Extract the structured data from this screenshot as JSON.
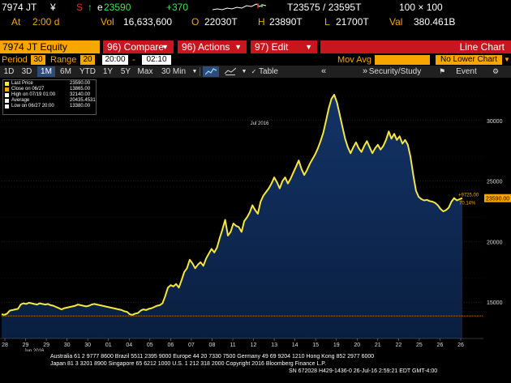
{
  "quote": {
    "ticker": "7974 JT",
    "currency_symbol": "¥",
    "flag": "S",
    "up_arrow": "↑",
    "trade_prefix": "e",
    "last_price": "23590",
    "change": "+370",
    "bid_ask": "T23575 / 23595T",
    "size": "100 × 100",
    "time_label": "At",
    "time": "2:00 d",
    "vol_label": "Vol",
    "volume": "16,633,600",
    "open_label": "O",
    "open": "22030T",
    "high_label": "H",
    "high": "23890T",
    "low_label": "L",
    "low": "21700T",
    "val_label": "Val",
    "value": "380.461B"
  },
  "menu": {
    "security": "7974 JT Equity",
    "compare": "96) Compare",
    "actions": "96) Actions",
    "edit": "97) Edit",
    "title": "Line Chart"
  },
  "period_bar": {
    "period_label": "Period",
    "period_value": "30",
    "range_label": "Range",
    "range_value": "20",
    "range_start": "20:00",
    "range_dash": "-",
    "range_end": "02:10",
    "mov_avg_label": "Mov Avg",
    "lower_chart": "No Lower Chart"
  },
  "toolbar": {
    "buttons": [
      "1D",
      "3D",
      "1M",
      "6M",
      "YTD",
      "1Y",
      "5Y",
      "Max",
      "30 Min"
    ],
    "selected": "1M",
    "table_label": "Table",
    "security_study": "Security/Study",
    "event_label": "Event"
  },
  "legend": {
    "items": [
      {
        "label": "Last Price",
        "value": "23590.00",
        "color": "#f5e642"
      },
      {
        "label": "Close on 06/27",
        "value": "13865.00",
        "color": "#f7a600"
      },
      {
        "label": "High on 07/19 01:00",
        "value": "32140.00",
        "color": "#ffffff"
      },
      {
        "label": "Average",
        "value": "20435.4531",
        "color": "#ffffff"
      },
      {
        "label": "Low on 06/27 20:00",
        "value": "13380.00",
        "color": "#ffffff"
      }
    ]
  },
  "chart_data": {
    "type": "area",
    "y_ticks": [
      "30000",
      "25000",
      "20000",
      "15000"
    ],
    "ylim": [
      12000,
      33000
    ],
    "x_ticks": [
      "28",
      "29",
      "29",
      "30",
      "30",
      "01",
      "04",
      "05",
      "06",
      "07",
      "08",
      "11",
      "12",
      "13",
      "14",
      "15",
      "19",
      "20",
      "21",
      "22",
      "25",
      "26",
      "26"
    ],
    "month_labels": [
      "Jun 2016",
      "Jul 2016"
    ],
    "last_price_tag": "23590.00",
    "annotation_change": "+9725.00",
    "annotation_pct": "70.14%",
    "reference_line": 13865,
    "colors": {
      "line": "#f5e642",
      "fill": "#0f2c58",
      "ref_line": "#f7a600",
      "tag": "#f7a600"
    },
    "series": [
      {
        "values": [
          14000,
          13950,
          14050,
          14300,
          14350,
          14400,
          14450,
          14800,
          14900,
          14850,
          14950,
          14900,
          14850,
          14800,
          14900,
          14850,
          14800,
          14850,
          14750,
          14700,
          14600,
          14500,
          14400,
          14500,
          14550,
          14600,
          14650,
          14700,
          14800,
          14750,
          14700,
          14650,
          14700,
          14800,
          14850,
          14800,
          14750,
          14700,
          14650,
          14600,
          14550,
          14500,
          14450,
          14400,
          14350,
          14250,
          14200,
          14000,
          13950,
          14050,
          14100,
          14300,
          14400,
          14350,
          14450,
          14500,
          14600,
          14700,
          14750,
          14900,
          15500,
          16200,
          16400,
          16300,
          16500,
          16200,
          16800,
          17500,
          17800,
          18500,
          18200,
          17800,
          18100,
          18300,
          18000,
          18600,
          19000,
          19400,
          19100,
          19500,
          20300,
          21000,
          21800,
          20500,
          20800,
          21500,
          21300,
          21200,
          20800,
          21700,
          22000,
          22400,
          23000,
          22600,
          22300,
          23300,
          23800,
          24100,
          24400,
          24800,
          25300,
          24900,
          24400,
          25000,
          25300,
          24800,
          25200,
          25700,
          26200,
          26700,
          26000,
          25500,
          25900,
          26400,
          26800,
          27200,
          27700,
          28300,
          29000,
          30000,
          31000,
          31800,
          32140,
          31500,
          30500,
          29500,
          28500,
          27800,
          27300,
          27800,
          28200,
          27700,
          27400,
          27900,
          28300,
          27800,
          27300,
          27700,
          28000,
          27600,
          27900,
          28400,
          29100,
          28500,
          28900,
          28400,
          28700,
          28100,
          28400,
          28000,
          27000,
          25500,
          24200,
          23700,
          23500,
          23400,
          23450,
          23350,
          23300,
          23200,
          23000,
          22700,
          22500,
          22600,
          22800,
          23300,
          23600,
          23400,
          23500,
          23590
        ]
      }
    ]
  },
  "footer": {
    "line1": "Australia 61 2 9777 8600 Brazil 5511 2395 9000 Europe 44 20 7330 7500 Germany 49 69 9204 1210 Hong Kong 852 2977 6000",
    "line2": "Japan 81 3 3201 8900        Singapore 65 6212 1000        U.S. 1 212 318 2000        Copyright 2016 Bloomberg Finance L.P.",
    "line3": "SN 672028 H429-1436-0 26-Jul-16  2:59:21 EDT  GMT-4:00"
  }
}
